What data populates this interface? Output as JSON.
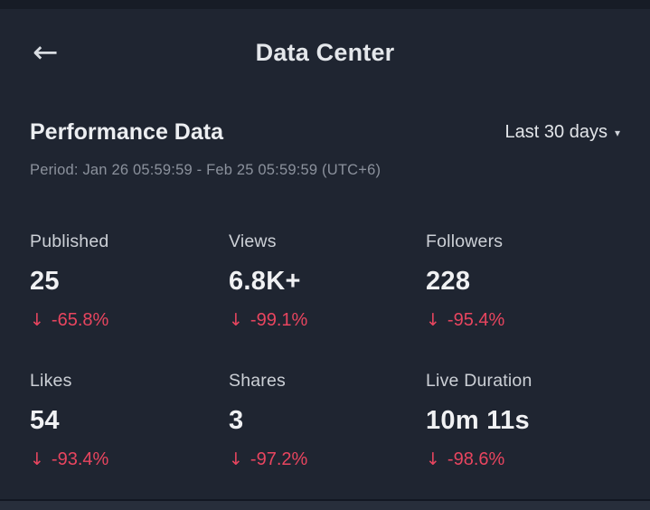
{
  "icons": {
    "back": "←",
    "caret_down": "▾",
    "trend_down": "↓"
  },
  "header": {
    "title": "Data Center"
  },
  "performance": {
    "section_title": "Performance Data",
    "range_label": "Last 30 days",
    "period": "Period: Jan 26 05:59:59 - Feb 25 05:59:59 (UTC+6)"
  },
  "stats": [
    {
      "label": "Published",
      "value": "25",
      "delta": "-65.8%",
      "direction": "down"
    },
    {
      "label": "Views",
      "value": "6.8K+",
      "delta": "-99.1%",
      "direction": "down"
    },
    {
      "label": "Followers",
      "value": "228",
      "delta": "-95.4%",
      "direction": "down"
    },
    {
      "label": "Likes",
      "value": "54",
      "delta": "-93.4%",
      "direction": "down"
    },
    {
      "label": "Shares",
      "value": "3",
      "delta": "-97.2%",
      "direction": "down"
    },
    {
      "label": "Live Duration",
      "value": "10m 11s",
      "delta": "-98.6%",
      "direction": "down"
    }
  ],
  "colors": {
    "background": "#1f2531",
    "negative": "#e8455f",
    "text_primary": "#f0f1f3",
    "text_secondary": "#8b919c"
  }
}
